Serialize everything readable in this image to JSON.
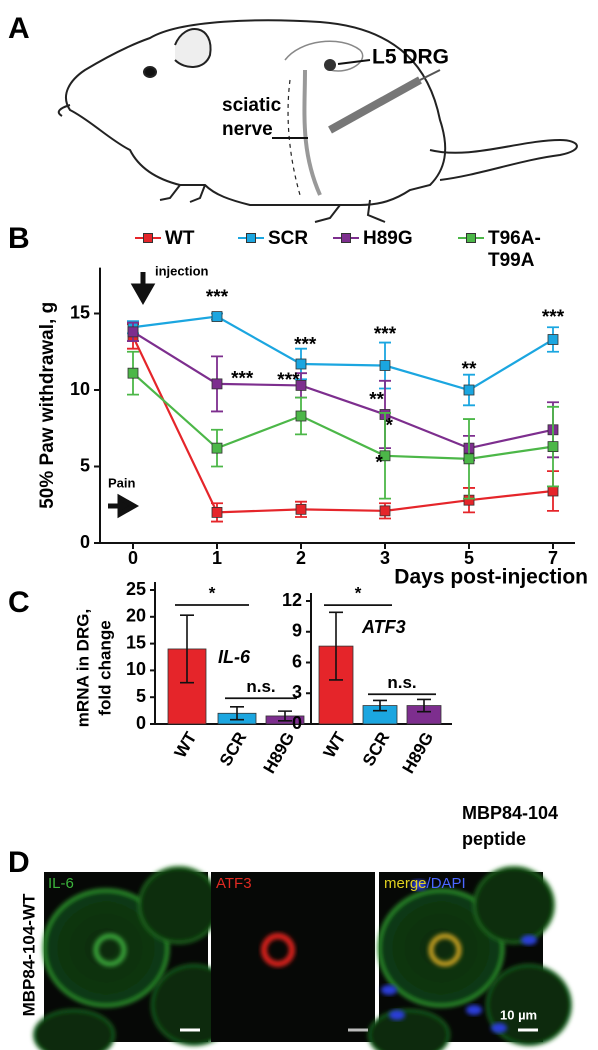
{
  "panel_a": {
    "label": "A",
    "drg_label": "L5 DRG",
    "nerve_label_1": "sciatic",
    "nerve_label_2": "nerve"
  },
  "chart_data": [
    {
      "type": "line",
      "panel_label": "B",
      "x_label": "Days post-injection",
      "y_label": "50% Paw withdrawal, g",
      "categories": [
        "0",
        "1",
        "2",
        "3",
        "5",
        "7"
      ],
      "ylim": [
        0,
        18
      ],
      "yticks": [
        0,
        5,
        10,
        15
      ],
      "injection_label": "injection",
      "pain_label": "Pain",
      "series": [
        {
          "name": "WT",
          "color": "#e5252a",
          "values": [
            13.5,
            2.0,
            2.2,
            2.1,
            2.8,
            3.4
          ],
          "errors": [
            0.8,
            0.6,
            0.5,
            0.5,
            0.8,
            1.3
          ]
        },
        {
          "name": "SCR",
          "color": "#1ba6e0",
          "values": [
            14.1,
            14.8,
            11.7,
            11.6,
            10.0,
            13.3
          ],
          "errors": [
            0.4,
            0.2,
            1.0,
            1.5,
            1.0,
            0.8
          ]
        },
        {
          "name": "H89G",
          "color": "#7d2e8e",
          "values": [
            13.8,
            10.4,
            10.3,
            8.4,
            6.2,
            7.4
          ],
          "errors": [
            0.6,
            1.8,
            0.8,
            2.2,
            0.8,
            1.8
          ]
        },
        {
          "name": "T96A-T99A",
          "color": "#4cb748",
          "values": [
            11.1,
            6.2,
            8.3,
            5.7,
            5.5,
            6.3
          ],
          "errors": [
            1.4,
            1.2,
            1.2,
            2.8,
            2.6,
            2.6
          ]
        }
      ],
      "annotations": [
        {
          "text": "***",
          "x": 1.0,
          "y": 16.0
        },
        {
          "text": "***",
          "x": 1.3,
          "y": 10.7
        },
        {
          "text": "***",
          "x": 2.05,
          "y": 12.9
        },
        {
          "text": "***",
          "x": 1.85,
          "y": 10.6
        },
        {
          "text": "***",
          "x": 3.0,
          "y": 13.6
        },
        {
          "text": "**",
          "x": 2.9,
          "y": 9.3
        },
        {
          "text": "*",
          "x": 3.05,
          "y": 7.6
        },
        {
          "text": "*",
          "x": 2.93,
          "y": 5.2
        },
        {
          "text": "**",
          "x": 4.0,
          "y": 11.3
        },
        {
          "text": "***",
          "x": 5.0,
          "y": 14.7
        }
      ]
    },
    {
      "type": "bar",
      "panel_label": "C",
      "y_label_1": "mRNA in DRG,",
      "y_label_2": "fold change",
      "gene": "IL-6",
      "categories": [
        "WT",
        "SCR",
        "H89G"
      ],
      "colors": [
        "#e5252a",
        "#1ba6e0",
        "#7d2e8e"
      ],
      "values": [
        14.0,
        2.0,
        1.5
      ],
      "errors": [
        6.3,
        1.2,
        0.9
      ],
      "ylim": [
        0,
        25
      ],
      "yticks": [
        0,
        5,
        10,
        15,
        20,
        25
      ],
      "comparisons": [
        {
          "text": "*",
          "from": 0,
          "to": 1,
          "y": 22.2
        },
        {
          "text": "n.s.",
          "from": 1,
          "to": 2,
          "y": 4.8
        }
      ]
    },
    {
      "type": "bar",
      "gene": "ATF3",
      "x_label_1": "MBP84-104",
      "x_label_2": "peptide",
      "categories": [
        "WT",
        "SCR",
        "H89G"
      ],
      "colors": [
        "#e5252a",
        "#1ba6e0",
        "#7d2e8e"
      ],
      "values": [
        7.6,
        1.8,
        1.8
      ],
      "errors": [
        3.3,
        0.5,
        0.6
      ],
      "ylim": [
        0,
        12
      ],
      "yticks": [
        0,
        3,
        6,
        9,
        12
      ],
      "comparisons": [
        {
          "text": "*",
          "from": 0,
          "to": 1,
          "y": 11.6
        },
        {
          "text": "n.s.",
          "from": 1,
          "to": 2,
          "y": 2.9
        }
      ]
    }
  ],
  "panel_d": {
    "label": "D",
    "row_label": "MBP84-104-WT",
    "panel_1": "IL-6",
    "panel_2": "ATF3",
    "panel_3a": "merge",
    "panel_3b": "/DAPI",
    "scale": "10 µm"
  }
}
